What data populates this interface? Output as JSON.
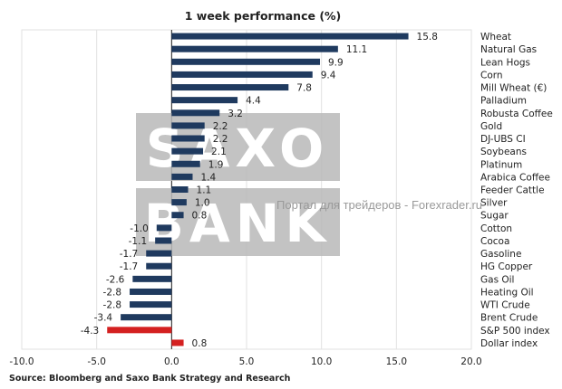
{
  "chart_data": {
    "type": "bar",
    "orientation": "horizontal",
    "title": "1 week performance (%)",
    "categories": [
      "Wheat",
      "Natural Gas",
      "Lean Hogs",
      "Corn",
      "Mill Wheat (€)",
      "Palladium",
      "Robusta Coffee",
      "Gold",
      "DJ-UBS CI",
      "Soybeans",
      "Platinum",
      "Arabica Coffee",
      "Feeder Cattle",
      "Silver",
      "Sugar",
      "Cotton",
      "Cocoa",
      "Gasoline",
      "HG Copper",
      "Gas Oil",
      "Heating Oil",
      "WTI Crude",
      "Brent Crude",
      "S&P 500 index",
      "Dollar index"
    ],
    "values": [
      15.8,
      11.1,
      9.9,
      9.4,
      7.8,
      4.4,
      3.2,
      2.2,
      2.2,
      2.1,
      1.9,
      1.4,
      1.1,
      1.0,
      0.8,
      -1.0,
      -1.1,
      -1.7,
      -1.7,
      -2.6,
      -2.8,
      -2.8,
      -3.4,
      -4.3,
      0.8
    ],
    "value_labels": [
      "15.8",
      "11.1",
      "9.9",
      "9.4",
      "7.8",
      "4.4",
      "3.2",
      "2.2",
      "2.2",
      "2.1",
      "1.9",
      "1.4",
      "1.1",
      "1.0",
      "0.8",
      "-1.0",
      "-1.1",
      "-1.7",
      "-1.7",
      "-2.6",
      "-2.8",
      "-2.8",
      "-3.4",
      "-4.3",
      "0.8"
    ],
    "highlight": [
      "S&P 500 index",
      "Dollar index"
    ],
    "xlim": [
      -10.0,
      20.0
    ],
    "xticks": [
      "-10.0",
      "-5.0",
      "0.0",
      "5.0",
      "10.0",
      "15.0",
      "20.0"
    ],
    "grid": "vertical",
    "legend": "none"
  },
  "colors": {
    "bar": "#1f3a5f",
    "highlight": "#d42020",
    "grid": "#e1e1e1",
    "watermark": "#b9b9b9"
  },
  "source": "Source: Bloomberg and Saxo Bank Strategy and Research",
  "watermark": {
    "logo_line1": "SAXO",
    "logo_line2": "BANK",
    "text": "Портал для трейдеров - Forexrader.ru"
  }
}
